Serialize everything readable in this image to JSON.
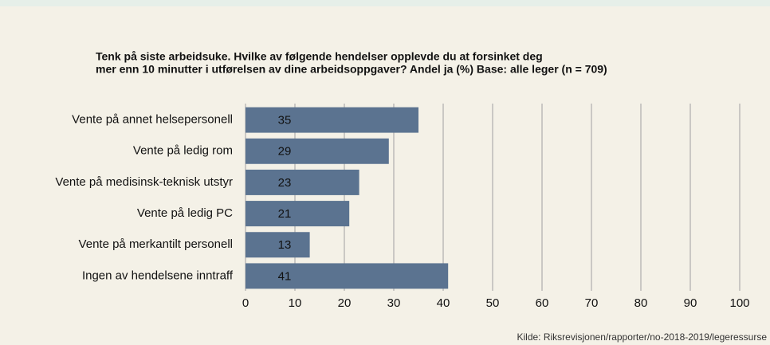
{
  "chart_data": {
    "type": "bar",
    "orientation": "horizontal",
    "title": [
      "Tenk på siste arbeidsuke. Hvilke av følgende hendelser opplevde du at forsinket deg",
      "mer enn 10 minutter i utførelsen av dine arbeidsoppgaver? Andel ja (%) Base: alle leger (n = 709)"
    ],
    "categories": [
      "Vente på annet helsepersonell",
      "Vente på ledig rom",
      "Vente på medisinsk-teknisk utstyr",
      "Vente på ledig PC",
      "Vente på merkantilt personell",
      "Ingen av hendelsene inntraff"
    ],
    "values": [
      35,
      29,
      23,
      21,
      13,
      41
    ],
    "color": "#5b7390",
    "xlim": [
      0,
      100
    ],
    "xticks": [
      0,
      10,
      20,
      30,
      40,
      50,
      60,
      70,
      80,
      90,
      100
    ],
    "grid": true,
    "source": "Kilde: Riksrevisjonen/rapporter/no-2018-2019/legeressurse"
  }
}
